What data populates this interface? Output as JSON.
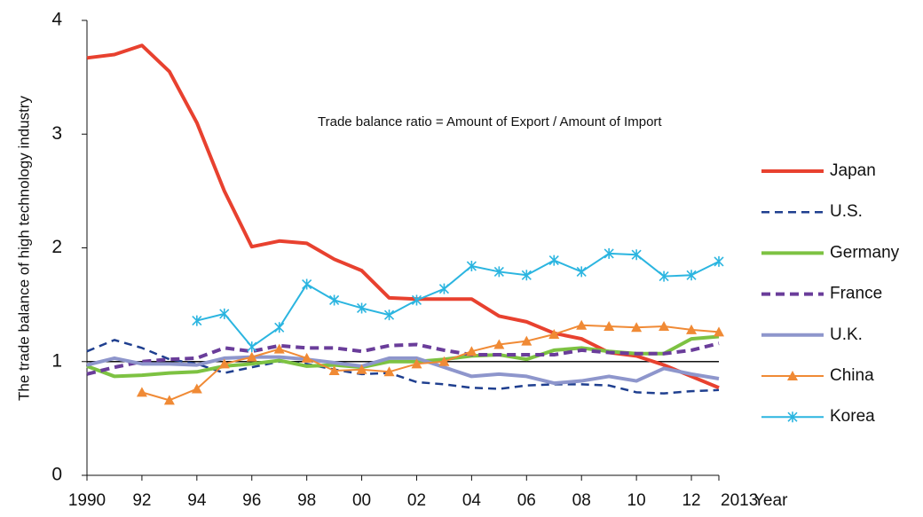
{
  "chart_data": {
    "type": "line",
    "y_label": "The trade balance of high technology industry",
    "x_label": "Year",
    "annotation": "Trade balance ratio = Amount of Export / Amount of Import",
    "x": [
      1990,
      1991,
      1992,
      1993,
      1994,
      1995,
      1996,
      1997,
      1998,
      1999,
      2000,
      2001,
      2002,
      2003,
      2004,
      2005,
      2006,
      2007,
      2008,
      2009,
      2010,
      2011,
      2012,
      2013
    ],
    "xlim": [
      1990,
      2013
    ],
    "xticks": [
      {
        "value": 1990,
        "label": "1990"
      },
      {
        "value": 1992,
        "label": "92"
      },
      {
        "value": 1994,
        "label": "94"
      },
      {
        "value": 1996,
        "label": "96"
      },
      {
        "value": 1998,
        "label": "98"
      },
      {
        "value": 2000,
        "label": "00"
      },
      {
        "value": 2002,
        "label": "02"
      },
      {
        "value": 2004,
        "label": "04"
      },
      {
        "value": 2006,
        "label": "06"
      },
      {
        "value": 2008,
        "label": "08"
      },
      {
        "value": 2010,
        "label": "10"
      },
      {
        "value": 2012,
        "label": "12"
      },
      {
        "value": 2013,
        "label": "2013"
      }
    ],
    "ylim": [
      0,
      4
    ],
    "yticks": [
      0,
      1,
      2,
      3,
      4
    ],
    "reference_line": 1,
    "legend": "right",
    "series": [
      {
        "name": "Japan",
        "color": "#e8412f",
        "width": 4,
        "values": [
          3.67,
          3.7,
          3.78,
          3.55,
          3.1,
          2.5,
          2.01,
          2.06,
          2.04,
          1.9,
          1.8,
          1.56,
          1.55,
          1.55,
          1.55,
          1.4,
          1.35,
          1.25,
          1.2,
          1.08,
          1.05,
          0.97,
          0.87,
          0.77
        ]
      },
      {
        "name": "U.S.",
        "color": "#1f3f8f",
        "width": 2.5,
        "dash": true,
        "values": [
          1.09,
          1.19,
          1.12,
          1.02,
          0.98,
          0.9,
          0.95,
          1.0,
          0.98,
          0.93,
          0.89,
          0.9,
          0.82,
          0.8,
          0.77,
          0.76,
          0.79,
          0.8,
          0.8,
          0.79,
          0.73,
          0.72,
          0.74,
          0.75
        ]
      },
      {
        "name": "Germany",
        "color": "#7dc242",
        "width": 4,
        "values": [
          0.96,
          0.87,
          0.88,
          0.9,
          0.91,
          0.96,
          0.98,
          1.01,
          0.96,
          0.97,
          0.95,
          1.0,
          1.0,
          1.02,
          1.05,
          1.06,
          1.02,
          1.1,
          1.12,
          1.09,
          1.07,
          1.07,
          1.2,
          1.22
        ]
      },
      {
        "name": "France",
        "color": "#6a3d9a",
        "width": 4,
        "dash": true,
        "values": [
          0.89,
          0.95,
          1.0,
          1.02,
          1.03,
          1.12,
          1.09,
          1.14,
          1.12,
          1.12,
          1.09,
          1.14,
          1.15,
          1.1,
          1.06,
          1.06,
          1.06,
          1.06,
          1.1,
          1.08,
          1.07,
          1.07,
          1.1,
          1.16
        ]
      },
      {
        "name": "U.K.",
        "color": "#8e96cc",
        "width": 4,
        "values": [
          0.97,
          1.03,
          0.98,
          0.98,
          0.97,
          1.03,
          1.04,
          1.04,
          1.02,
          0.99,
          0.96,
          1.03,
          1.03,
          0.95,
          0.87,
          0.89,
          0.87,
          0.81,
          0.83,
          0.87,
          0.83,
          0.94,
          0.89,
          0.85
        ]
      },
      {
        "name": "China",
        "color": "#f08a35",
        "width": 2,
        "marker": "triangle",
        "values": [
          null,
          null,
          0.73,
          0.66,
          0.76,
          0.98,
          1.04,
          1.11,
          1.03,
          0.92,
          0.93,
          0.91,
          0.98,
          1.0,
          1.09,
          1.15,
          1.18,
          1.24,
          1.32,
          1.31,
          1.3,
          1.31,
          1.28,
          1.26
        ]
      },
      {
        "name": "Korea",
        "color": "#2bb5e0",
        "width": 2,
        "marker": "asterisk",
        "values": [
          null,
          null,
          null,
          null,
          1.36,
          1.42,
          1.13,
          1.3,
          1.68,
          1.54,
          1.47,
          1.41,
          1.54,
          1.64,
          1.84,
          1.79,
          1.76,
          1.89,
          1.79,
          1.95,
          1.94,
          1.75,
          1.76,
          1.88
        ]
      }
    ]
  }
}
